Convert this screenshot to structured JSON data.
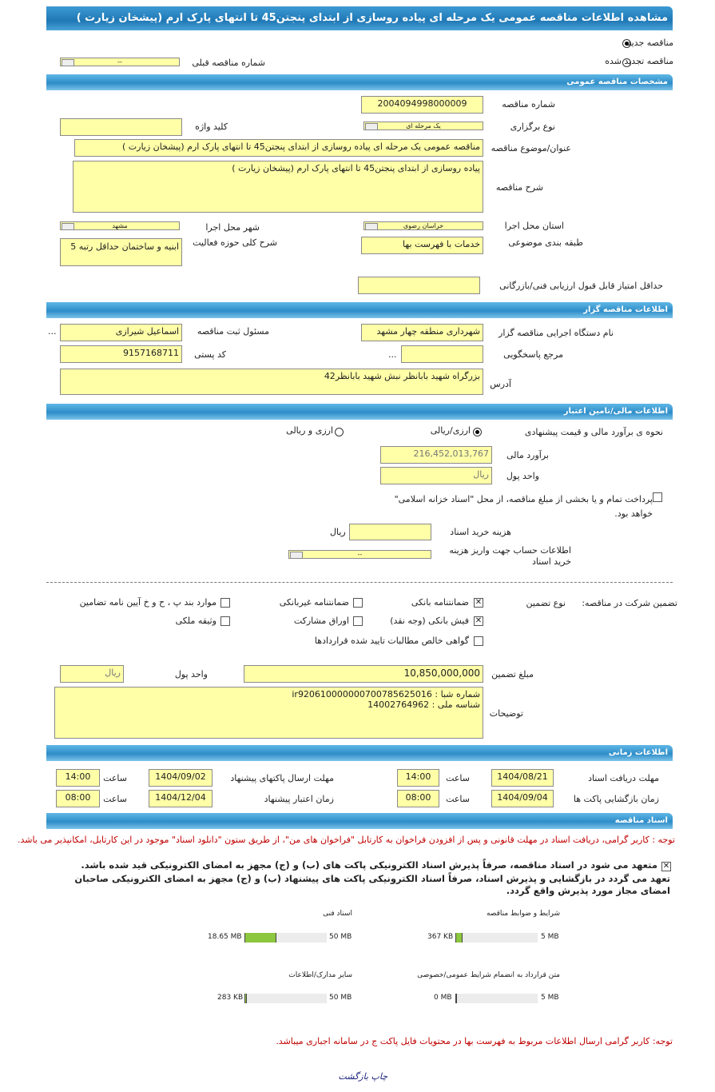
{
  "title": "مشاهده اطلاعات مناقصه عمومی یک مرحله ای پیاده روسازی از ابتدای پنجتن45 تا انتهای پارک ارم (پیشخان زیارت )",
  "tender_kind": {
    "new_label": "مناقصه جدید",
    "renewed_label": "مناقصه تجدید شده",
    "selected": "new",
    "prev_number_label": "شماره مناقصه قبلی",
    "prev_number_value": "--"
  },
  "general": {
    "header": "مشخصات مناقصه عمومی",
    "number_label": "شماره مناقصه",
    "number": "2004094998000009",
    "type_label": "نوع برگزاری",
    "type_value": "یک مرحله ای",
    "keyword_label": "کلید واژه",
    "keyword": "",
    "subject_label": "عنوان/موضوع مناقصه",
    "subject": "مناقصه عمومی یک مرحله ای پیاده روسازی از ابتدای پنجتن45 تا انتهای پارک ارم (پیشخان زیارت )",
    "desc_label": "شرح مناقصه",
    "desc": "پیاده روسازی از ابتدای پنجتن45 تا انتهای پارک ارم (پیشخان زیارت )",
    "province_label": "استان محل اجرا",
    "province": "خراسان رضوی",
    "city_label": "شهر محل اجرا",
    "city": "مشهد",
    "category_label": "طبقه بندی موضوعی",
    "category": "خدمات با فهرست بها",
    "activity_label": "شرح کلی حوزه فعالیت",
    "activity": "ابنیه و ساختمان حداقل رتبه 5",
    "min_score_label": "حداقل امتیاز قابل قبول ارزیابی فنی/بازرگانی",
    "min_score": ""
  },
  "organizer": {
    "header": "اطلاعات مناقصه گزار",
    "org_label": "نام دستگاه اجرایی مناقصه گزار",
    "org": "شهرداری منطقه چهار مشهد",
    "responsible_label": "مسئول ثبت مناقصه",
    "responsible": "اسماعیل شیرازی",
    "more": "...",
    "ref_label": "مرجع پاسخگویی",
    "ref": "",
    "ref_more": "...",
    "postal_label": "کد پستی",
    "postal": "9157168711",
    "address_label": "آدرس",
    "address": "بزرگراه شهید بابانظر نبش شهید بابانظر42"
  },
  "finance": {
    "header": "اطلاعات مالی/تامین اعتبار",
    "method_label": "نحوه ی برآورد مالی و قیمت پیشنهادی",
    "opt_rial": "ارزی/ریالی",
    "opt_both": "ارزی و ریالی",
    "selected": "rial",
    "estimate_label": "برآورد مالی",
    "estimate": "216,452,013,767",
    "currency_label": "واحد پول",
    "currency": "ریال",
    "treasury_text": "پرداخت تمام و یا بخشی از مبلغ مناقصه، از محل \"اسناد خزانه اسلامی\" خواهد بود.",
    "treasury_checked": false,
    "doc_cost_label": "هزینه خرید اسناد",
    "doc_cost": "",
    "doc_cost_unit": "ریال",
    "account_label": "اطلاعات حساب جهت واریز هزینه خرید اسناد",
    "account": "--"
  },
  "guarantee": {
    "label": "تضمین شرکت در مناقصه:",
    "type_label": "نوع تضمین",
    "options": [
      {
        "label": "ضمانتنامه بانکی",
        "checked": true
      },
      {
        "label": "ضمانتنامه غیربانکی",
        "checked": false
      },
      {
        "label": "موارد بند پ ، ح و خ آیین نامه تضامین",
        "checked": false
      },
      {
        "label": "فیش بانکی (وجه نقد)",
        "checked": true
      },
      {
        "label": "اوراق مشارکت",
        "checked": false
      },
      {
        "label": "وثیقه ملکی",
        "checked": false
      },
      {
        "label": "گواهی خالص مطالبات تایید شده قراردادها",
        "checked": false
      }
    ],
    "amount_label": "مبلغ تضمین",
    "amount": "10,850,000,000",
    "currency_label": "واحد پول",
    "currency": "ریال",
    "notes_label": "توضیحات",
    "notes_line1": "شماره شبا :  ir920610000000700785625016",
    "notes_line2": "شناسه ملی : 14002764962"
  },
  "timing": {
    "header": "اطلاعات زمانی",
    "time_label": "ساعت",
    "doc_receive_label": "مهلت دریافت اسناد",
    "doc_receive_date": "1404/08/21",
    "doc_receive_time": "14:00",
    "submit_label": "مهلت ارسال پاکتهای پیشنهاد",
    "submit_date": "1404/09/02",
    "submit_time": "14:00",
    "open_label": "زمان بازگشایی پاکت ها",
    "open_date": "1404/09/04",
    "open_time": "08:00",
    "validity_label": "زمان اعتبار پیشنهاد",
    "validity_date": "1404/12/04",
    "validity_time": "08:00"
  },
  "docs": {
    "header": "اسناد مناقصه",
    "notice": "توجه : کاربر گرامی، دریافت اسناد در مهلت قانونی و پس از افزودن فراخوان به کارتابل \"فراخوان های من\"، از طریق ستون \"دانلود اسناد\" موجود در این کارتابل، امکانپذیر می باشد.",
    "commit1": "متعهد می شود در اسناد مناقصه، صرفاً پذیرش اسناد الکترونیکی پاکت های (ب) و (ج) مجهز به امضای الکترونیکی قید شده باشد.",
    "commit2": "تعهد می گردد در بازگشایی و پذیرش اسناد، صرفاً اسناد الکترونیکی پاکت های پیشنهاد (ب) و (ج) مجهز به امضای الکترونیکی صاحبان امضای مجاز مورد پذیرش واقع گردد.",
    "commit_checked": true,
    "files": [
      {
        "label": "شرایط و ضوابط مناقصه",
        "size": "367 KB",
        "max": "5 MB",
        "fill": 0.07
      },
      {
        "label": "اسناد فنی",
        "size": "18.65 MB",
        "max": "50 MB",
        "fill": 0.37
      },
      {
        "label": "متن قرارداد به انضمام شرایط عمومی/خصوصی",
        "size": "0 MB",
        "max": "5 MB",
        "fill": 0
      },
      {
        "label": "سایر مدارک/اطلاعات",
        "size": "283 KB",
        "max": "50 MB",
        "fill": 0.01
      }
    ],
    "bottom_note": "توجه: کاربر گرامی ارسال اطلاعات مربوط به فهرست بها در محتویات فایل پاکت ج در سامانه اجباری میباشد."
  },
  "footer": {
    "print": "چاپ",
    "back": "بازگشت"
  },
  "colors": {
    "header": "#2e8dc8",
    "field": "#ffffa8",
    "progress": "#8dc63f",
    "notice": "#c00000"
  }
}
